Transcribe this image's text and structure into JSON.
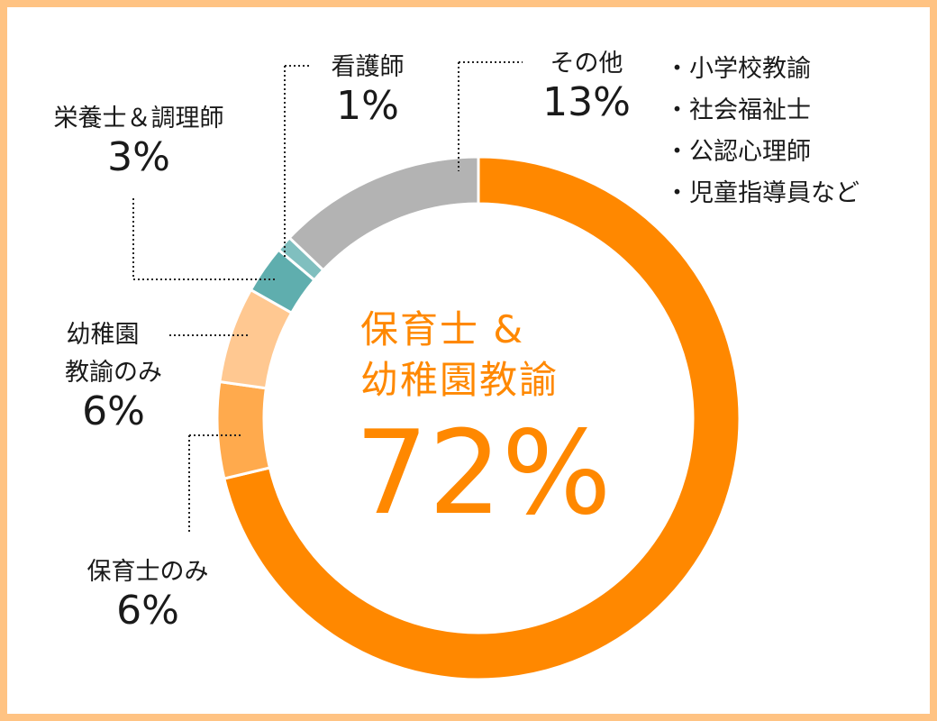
{
  "chart_data": {
    "type": "pie",
    "style": "donut",
    "title": "",
    "center_label": {
      "line1": "保育士 &",
      "line2": "幼稚園教諭",
      "value": "72%"
    },
    "categories": [
      "保育士＆幼稚園教諭",
      "保育士のみ",
      "幼稚園教諭のみ",
      "栄養士＆調理師",
      "看護師",
      "その他"
    ],
    "values": [
      72,
      6,
      6,
      3,
      1,
      13
    ],
    "colors": [
      "#FF8800",
      "#FFAA4D",
      "#FFC891",
      "#5FAEAE",
      "#80BFBF",
      "#B3B3B3"
    ],
    "start_angle": "12 o'clock",
    "direction": "clockwise",
    "other_breakdown": [
      "小学校教諭",
      "社会福祉士",
      "公認心理師",
      "児童指導員など"
    ]
  },
  "labels": {
    "eiyoshi": {
      "name": "栄養士＆調理師",
      "pct": "3%"
    },
    "kangoshi": {
      "name": "看護師",
      "pct": "1%"
    },
    "sonota": {
      "name": "その他",
      "pct": "13%"
    },
    "youchien": {
      "name1": "幼稚園",
      "name2": "教諭のみ",
      "pct": "6%"
    },
    "hoikushi": {
      "name": "保育士のみ",
      "pct": "6%"
    }
  },
  "center": {
    "line1": "保育士 &",
    "line2": "幼稚園教諭",
    "value": "72%"
  },
  "notes": [
    "・小学校教諭",
    "・社会福祉士",
    "・公認心理師",
    "・児童指導員など"
  ],
  "colors": {
    "border": "#FFC383",
    "accent": "#FF8800"
  }
}
